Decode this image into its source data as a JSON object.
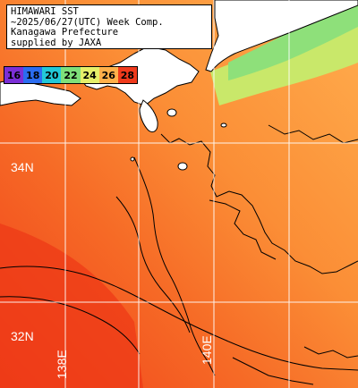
{
  "info": {
    "lines": [
      "HIMAWARI SST",
      "~2025/06/27(UTC) Week Comp.",
      "Kanagawa Prefecture",
      "supplied by JAXA"
    ]
  },
  "legend": {
    "items": [
      {
        "label": "16",
        "color": "#7b2fd6"
      },
      {
        "label": "18",
        "color": "#2b6cf0"
      },
      {
        "label": "20",
        "color": "#22c8d8"
      },
      {
        "label": "22",
        "color": "#7fe07a"
      },
      {
        "label": "24",
        "color": "#e6f06a"
      },
      {
        "label": "26",
        "color": "#ffb04a"
      },
      {
        "label": "28",
        "color": "#ef3a1c"
      }
    ]
  },
  "grid": {
    "latitude_labels": [
      "34N",
      "32N"
    ],
    "longitude_labels": [
      "138E",
      "140E"
    ]
  },
  "colors": {
    "land": "#ffffff",
    "sea_warm": "#f2561f",
    "sea_mid": "#fb8a32",
    "sea_cool": "#ffa84a",
    "coastal_green": "#a8e87a",
    "grid_line": "#ffffff",
    "contour": "#000000"
  }
}
